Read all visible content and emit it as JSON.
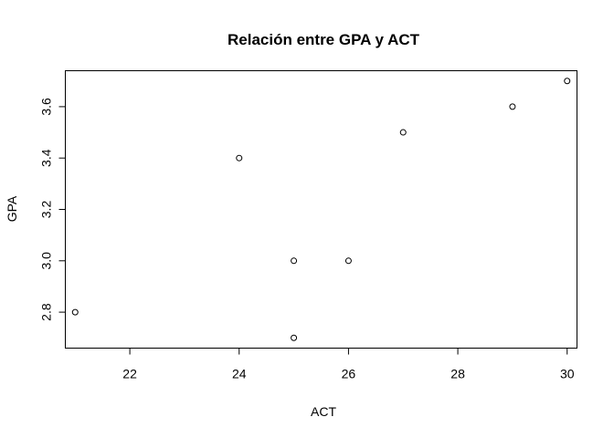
{
  "chart_data": {
    "type": "scatter",
    "title": "Relación entre GPA y ACT",
    "xlabel": "ACT",
    "ylabel": "GPA",
    "xlim": [
      20.82,
      30.18
    ],
    "ylim": [
      2.66,
      3.74
    ],
    "x_ticks": [
      22,
      24,
      26,
      28,
      30
    ],
    "y_ticks": [
      2.8,
      3.0,
      3.2,
      3.4,
      3.6
    ],
    "x_tick_labels": [
      "22",
      "24",
      "26",
      "28",
      "30"
    ],
    "y_tick_labels": [
      "2.8",
      "3.0",
      "3.2",
      "3.4",
      "3.6"
    ],
    "grid": false,
    "points": [
      {
        "x": 21,
        "y": 2.8
      },
      {
        "x": 24,
        "y": 3.4
      },
      {
        "x": 25,
        "y": 3.0
      },
      {
        "x": 25,
        "y": 2.7
      },
      {
        "x": 26,
        "y": 3.0
      },
      {
        "x": 27,
        "y": 3.5
      },
      {
        "x": 29,
        "y": 3.6
      },
      {
        "x": 30,
        "y": 3.7
      }
    ],
    "point_color": "#000000"
  }
}
